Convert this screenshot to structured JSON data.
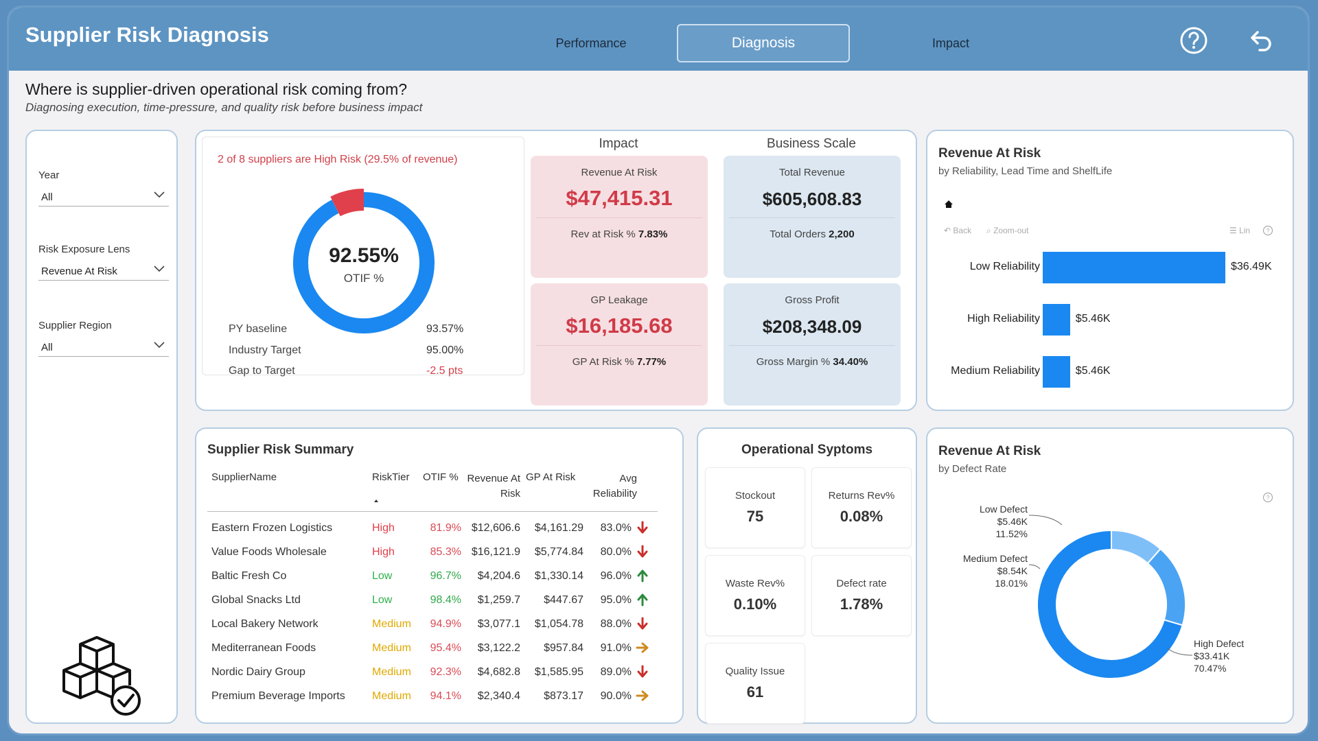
{
  "header": {
    "title": "Supplier Risk Diagnosis",
    "tabs": [
      {
        "label": "Performance",
        "active": false
      },
      {
        "label": "Diagnosis",
        "active": true
      },
      {
        "label": "Impact",
        "active": false
      }
    ],
    "help_icon": "help-circle-icon",
    "back_icon": "undo-arrow-icon"
  },
  "page": {
    "heading": "Where is supplier-driven operational risk coming from?",
    "subheading": "Diagnosing execution, time-pressure, and quality risk before business impact"
  },
  "filters": [
    {
      "label": "Year",
      "value": "All"
    },
    {
      "label": "Risk Exposure Lens",
      "value": "Revenue At Risk"
    },
    {
      "label": "Supplier Region",
      "value": "All"
    }
  ],
  "otif": {
    "alert": "2 of 8 suppliers are High Risk (29.5% of revenue)",
    "value": "92.55%",
    "label": "OTIF %",
    "fill_fraction": 0.9255,
    "rows": [
      {
        "label": "PY baseline",
        "value": "93.57%"
      },
      {
        "label": "Industry Target",
        "value": "95.00%"
      },
      {
        "label": "Gap to Target",
        "value": "-2.5 pts"
      }
    ]
  },
  "impact": {
    "title": "Impact",
    "cards": [
      {
        "title": "Revenue At Risk",
        "value": "$47,415.31",
        "sub_label": "Rev at Risk %",
        "sub_value": "7.83%"
      },
      {
        "title": "GP Leakage",
        "value": "$16,185.68",
        "sub_label": "GP At Risk %",
        "sub_value": "7.77%"
      }
    ]
  },
  "scale": {
    "title": "Business Scale",
    "cards": [
      {
        "title": "Total Revenue",
        "value": "$605,608.83",
        "sub_label": "Total Orders",
        "sub_value": "2,200"
      },
      {
        "title": "Gross Profit",
        "value": "$208,348.09",
        "sub_label": "Gross Margin %",
        "sub_value": "34.40%"
      }
    ]
  },
  "reliability_chart": {
    "title": "Revenue At Risk",
    "subtitle": "by Reliability, Lead Time and ShelfLife",
    "toolbar": {
      "home_icon": "home-icon",
      "back": "Back",
      "zoom_out": "Zoom-out",
      "lin": "Lin"
    },
    "chart_data": {
      "type": "bar",
      "orientation": "horizontal",
      "categories": [
        "Low Reliability",
        "High Reliability",
        "Medium Reliability"
      ],
      "values": [
        36.49,
        5.46,
        5.46
      ],
      "value_labels": [
        "$36.49K",
        "$5.46K",
        "$5.46K"
      ],
      "unit": "$K",
      "color": "#1a88f0"
    }
  },
  "summary_table": {
    "title": "Supplier Risk Summary",
    "columns": [
      "SupplierName",
      "RiskTier",
      "OTIF %",
      "Revenue At Risk",
      "GP At Risk",
      "Avg Reliability"
    ],
    "rows": [
      {
        "name": "Eastern Frozen Logistics",
        "tier": "High",
        "otif": "81.9%",
        "rev": "$12,606.6",
        "gp": "$4,161.29",
        "rel": "83.0%",
        "trend": "down"
      },
      {
        "name": "Value Foods Wholesale",
        "tier": "High",
        "otif": "85.3%",
        "rev": "$16,121.9",
        "gp": "$5,774.84",
        "rel": "80.0%",
        "trend": "down"
      },
      {
        "name": "Baltic Fresh Co",
        "tier": "Low",
        "otif": "96.7%",
        "rev": "$4,204.6",
        "gp": "$1,330.14",
        "rel": "96.0%",
        "trend": "up"
      },
      {
        "name": "Global Snacks Ltd",
        "tier": "Low",
        "otif": "98.4%",
        "rev": "$1,259.7",
        "gp": "$447.67",
        "rel": "95.0%",
        "trend": "up"
      },
      {
        "name": "Local Bakery Network",
        "tier": "Medium",
        "otif": "94.9%",
        "rev": "$3,077.1",
        "gp": "$1,054.78",
        "rel": "88.0%",
        "trend": "down"
      },
      {
        "name": "Mediterranean Foods",
        "tier": "Medium",
        "otif": "95.4%",
        "rev": "$3,122.2",
        "gp": "$957.84",
        "rel": "91.0%",
        "trend": "right"
      },
      {
        "name": "Nordic Dairy Group",
        "tier": "Medium",
        "otif": "92.3%",
        "rev": "$4,682.8",
        "gp": "$1,585.95",
        "rel": "89.0%",
        "trend": "down"
      },
      {
        "name": "Premium Beverage Imports",
        "tier": "Medium",
        "otif": "94.1%",
        "rev": "$2,340.4",
        "gp": "$873.17",
        "rel": "90.0%",
        "trend": "right"
      }
    ]
  },
  "operational": {
    "title": "Operational Syptoms",
    "cards": [
      {
        "label": "Stockout",
        "value": "75"
      },
      {
        "label": "Returns Rev%",
        "value": "0.08%"
      },
      {
        "label": "Waste Rev%",
        "value": "0.10%"
      },
      {
        "label": "Defect rate",
        "value": "1.78%"
      },
      {
        "label": "Quality Issue",
        "value": "61"
      }
    ]
  },
  "defect_chart": {
    "title": "Revenue At Risk",
    "subtitle": "by Defect Rate",
    "chart_data": {
      "type": "pie",
      "donut": true,
      "categories": [
        "Low Defect",
        "Medium Defect",
        "High Defect"
      ],
      "values": [
        5.46,
        8.54,
        33.41
      ],
      "value_labels": [
        "$5.46K",
        "$8.54K",
        "$33.41K"
      ],
      "percent_labels": [
        "11.52%",
        "18.01%",
        "70.47%"
      ],
      "colors": [
        "#7fbff8",
        "#4aa3f3",
        "#1a88f0"
      ]
    }
  },
  "logo_icon": "boxes-check-icon"
}
